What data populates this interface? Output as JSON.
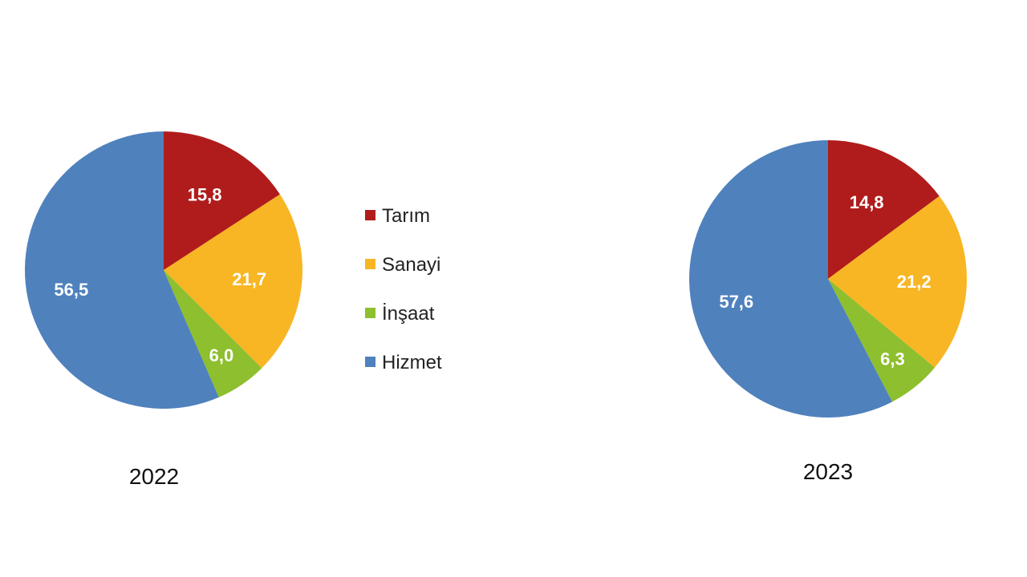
{
  "chart_data": [
    {
      "type": "pie",
      "title": "2022",
      "categories": [
        "Tarım",
        "Sanayi",
        "İnşaat",
        "Hizmet"
      ],
      "values": [
        15.8,
        21.7,
        6.0,
        56.5
      ],
      "labels": [
        "15,8",
        "21,7",
        "6,0",
        "56,5"
      ],
      "colors": [
        "#B01C1C",
        "#F8B624",
        "#8DBF2E",
        "#4F81BD"
      ],
      "start": "top, clockwise",
      "legend": "right"
    },
    {
      "type": "pie",
      "title": "2023",
      "categories": [
        "Tarım",
        "Sanayi",
        "İnşaat",
        "Hizmet"
      ],
      "values": [
        14.8,
        21.2,
        6.3,
        57.6
      ],
      "labels": [
        "14,8",
        "21,2",
        "6,3",
        "57,6"
      ],
      "colors": [
        "#B01C1C",
        "#F8B624",
        "#8DBF2E",
        "#4F81BD"
      ],
      "start": "top, clockwise"
    }
  ],
  "legend": {
    "items": [
      {
        "label": "Tarım",
        "color": "#B01C1C"
      },
      {
        "label": "Sanayi",
        "color": "#F8B624"
      },
      {
        "label": "İnşaat",
        "color": "#8DBF2E"
      },
      {
        "label": "Hizmet",
        "color": "#4F81BD"
      }
    ]
  }
}
